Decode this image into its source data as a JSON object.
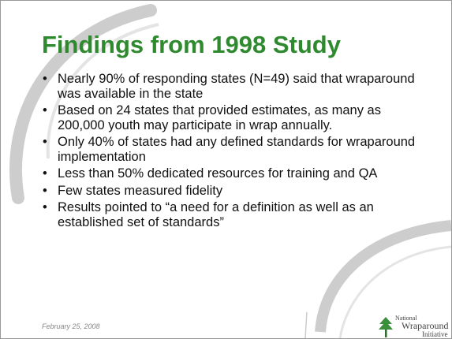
{
  "slide": {
    "title": "Findings from 1998 Study",
    "bullets": [
      "Nearly 90% of responding states (N=49) said that wraparound was available in the state",
      "Based on 24 states that provided estimates, as many as 200,000 youth may participate in wrap annually.",
      "Only 40% of states had any defined standards for wraparound implementation",
      "Less than 50% dedicated resources for training and QA",
      "Few states measured fidelity",
      "Results pointed to “a need for a definition as well as an established set of standards”"
    ],
    "date": "February 25, 2008",
    "logo": {
      "line1": "National",
      "line2": "Wraparound",
      "line3": "Initiative"
    }
  }
}
